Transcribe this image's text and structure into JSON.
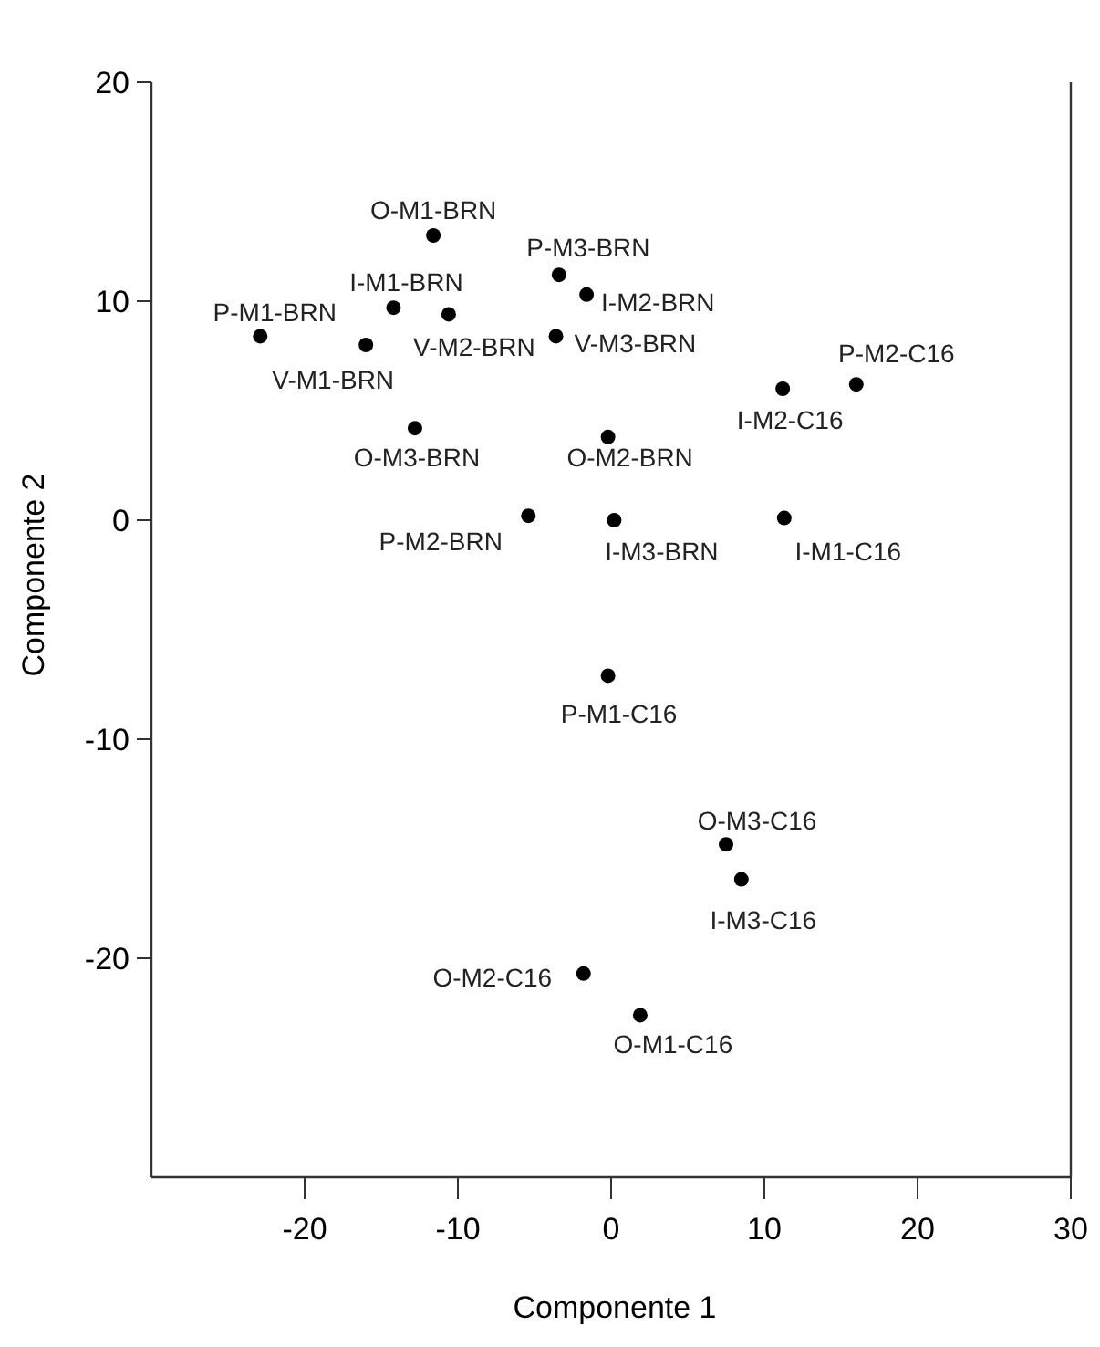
{
  "chart_data": {
    "type": "scatter",
    "xlabel": "Componente 1",
    "ylabel": "Componente 2",
    "x": [
      -11.6,
      -3.4,
      -1.6,
      -14.2,
      -10.6,
      -22.9,
      -16.0,
      -3.6,
      11.2,
      16.0,
      -12.8,
      -0.2,
      -5.4,
      0.2,
      11.3,
      -0.2,
      7.5,
      8.5,
      -1.8,
      1.9
    ],
    "values": [
      13.0,
      11.2,
      10.3,
      9.7,
      9.4,
      8.4,
      8.0,
      8.4,
      6.0,
      6.2,
      4.2,
      3.8,
      0.2,
      0.0,
      0.1,
      -7.1,
      -14.8,
      -16.4,
      -20.7,
      -22.6
    ],
    "color": "#000000",
    "marker": "circle",
    "xlim": [
      -30,
      30
    ],
    "xticks": [
      -20,
      -10,
      0,
      10,
      20,
      30
    ],
    "ylim": [
      -30,
      20
    ],
    "yticks": [
      -20,
      -10,
      0,
      10,
      20
    ],
    "grid": false,
    "annotations": [
      {
        "text": "O-M1-BRN",
        "x": -11.6,
        "y": 13.0
      },
      {
        "text": "P-M3-BRN",
        "x": -3.4,
        "y": 11.2
      },
      {
        "text": "I-M2-BRN",
        "x": -1.6,
        "y": 10.3
      },
      {
        "text": "I-M1-BRN",
        "x": -14.2,
        "y": 9.7
      },
      {
        "text": "V-M2-BRN",
        "x": -10.6,
        "y": 9.4
      },
      {
        "text": "P-M1-BRN",
        "x": -22.9,
        "y": 8.4
      },
      {
        "text": "V-M1-BRN",
        "x": -16.0,
        "y": 8.0
      },
      {
        "text": "V-M3-BRN",
        "x": -3.6,
        "y": 8.4
      },
      {
        "text": "I-M2-C16",
        "x": 11.2,
        "y": 6.0
      },
      {
        "text": "P-M2-C16",
        "x": 16.0,
        "y": 6.2
      },
      {
        "text": "O-M3-BRN",
        "x": -12.8,
        "y": 4.2
      },
      {
        "text": "O-M2-BRN",
        "x": -0.2,
        "y": 3.8
      },
      {
        "text": "P-M2-BRN",
        "x": -5.4,
        "y": 0.2
      },
      {
        "text": "I-M3-BRN",
        "x": 0.2,
        "y": 0.0
      },
      {
        "text": "I-M1-C16",
        "x": 11.3,
        "y": 0.1
      },
      {
        "text": "P-M1-C16",
        "x": -0.2,
        "y": -7.1
      },
      {
        "text": "O-M3-C16",
        "x": 7.5,
        "y": -14.8
      },
      {
        "text": "I-M3-C16",
        "x": 8.5,
        "y": -16.4
      },
      {
        "text": "O-M2-C16",
        "x": -1.8,
        "y": -20.7
      },
      {
        "text": "O-M1-C16",
        "x": 1.9,
        "y": -22.6
      }
    ]
  }
}
